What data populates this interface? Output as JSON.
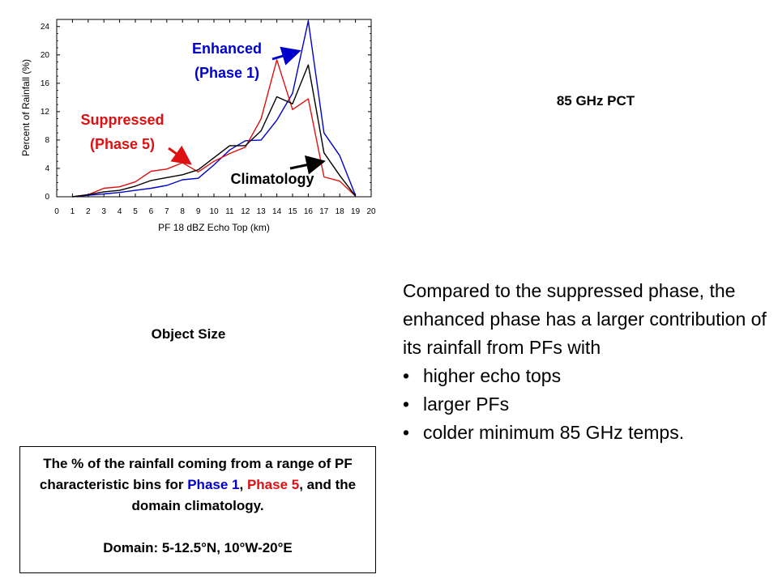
{
  "colors": {
    "phase1": "#0000cc",
    "phase5": "#dd1111",
    "climatology": "#000000"
  },
  "chart_data": {
    "type": "line",
    "xlabel": "PF 18 dBZ Echo Top (km)",
    "ylabel": "Percent of Rainfall (%)",
    "xlim": [
      0,
      20
    ],
    "ylim": [
      0,
      25
    ],
    "xticks": [
      0,
      1,
      2,
      3,
      4,
      5,
      6,
      7,
      8,
      9,
      10,
      11,
      12,
      13,
      14,
      15,
      16,
      17,
      18,
      19,
      20
    ],
    "yticks": [
      0,
      4,
      8,
      12,
      16,
      20,
      24
    ],
    "grid": false,
    "x": [
      1,
      2,
      3,
      4,
      5,
      6,
      7,
      8,
      9,
      10,
      11,
      12,
      13,
      14,
      15,
      16,
      17,
      18,
      19
    ],
    "series": [
      {
        "key": "phase1",
        "values": [
          0,
          0.2,
          0.4,
          0.6,
          0.9,
          1.2,
          1.6,
          2.4,
          2.6,
          4.5,
          6.6,
          7.9,
          8.0,
          10.8,
          14.6,
          24.8,
          9.0,
          5.8,
          0.2
        ]
      },
      {
        "key": "phase5",
        "values": [
          0,
          0.3,
          1.2,
          1.4,
          2.1,
          3.6,
          3.9,
          4.8,
          3.5,
          5.0,
          6.1,
          7.0,
          11.0,
          19.3,
          12.3,
          13.8,
          2.8,
          2.2,
          0.1
        ]
      },
      {
        "key": "climatology",
        "values": [
          0,
          0.3,
          0.7,
          0.9,
          1.5,
          2.3,
          2.7,
          3.1,
          3.8,
          5.5,
          7.2,
          7.2,
          9.3,
          14.1,
          13.1,
          18.6,
          6.2,
          3.0,
          0.1
        ]
      }
    ],
    "annotations": [
      {
        "key": "enhanced",
        "lines": [
          "Enhanced",
          "(Phase 1)"
        ]
      },
      {
        "key": "suppressed",
        "lines": [
          "Suppressed",
          "(Phase 5)"
        ]
      },
      {
        "key": "climatology",
        "lines": [
          "Climatology"
        ]
      }
    ]
  },
  "labels": {
    "pct85": "85 GHz PCT",
    "object_size": "Object Size"
  },
  "summary": {
    "intro": "Compared to the suppressed phase, the enhanced phase has a larger contribution of its rainfall from PFs with",
    "bullets": [
      "higher echo tops",
      "larger PFs",
      "colder minimum 85 GHz temps."
    ]
  },
  "caption": {
    "part1": "The % of the rainfall coming from a range of PF characteristic bins for ",
    "phase1": "Phase 1",
    "part2": ", ",
    "phase5": "Phase 5",
    "part3": ", and the domain climatology.",
    "domain": "Domain: 5-12.5°N, 10°W-20°E"
  }
}
